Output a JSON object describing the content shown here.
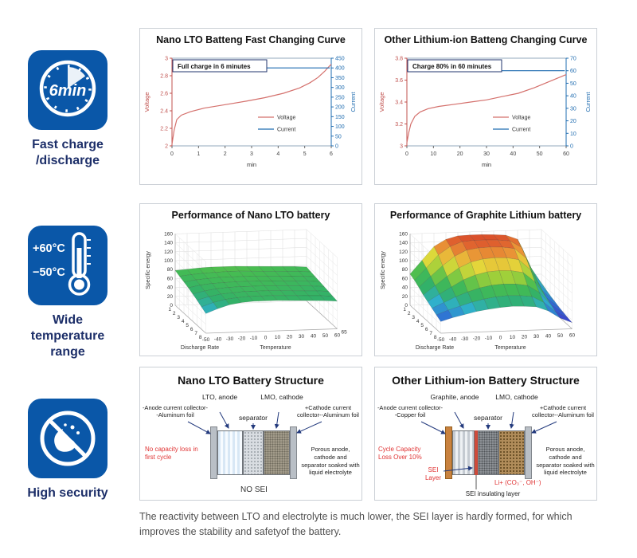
{
  "sidebar": {
    "items": [
      {
        "icon": "clock-6min-icon",
        "clock_text": "6min",
        "label_lines": [
          "Fast charge",
          "/discharge"
        ]
      },
      {
        "icon": "thermometer-icon",
        "temp_high": "+60°C",
        "temp_low": "−50°C",
        "label_lines": [
          "Wide",
          "temperature",
          "range"
        ]
      },
      {
        "icon": "no-explosion-icon",
        "label_lines": [
          "High security"
        ]
      }
    ]
  },
  "chart_data": {
    "line_charts": [
      {
        "type": "line",
        "title": "Nano LTO Batteng Fast Changing Curve",
        "annotation": "Full charge in 6 minutes",
        "x_axis": {
          "label": "min",
          "min": 0,
          "max": 6,
          "ticks": [
            0,
            1,
            2,
            3,
            4,
            5,
            6
          ]
        },
        "left_axis": {
          "label": "Voltage",
          "color": "#c0504d",
          "min": 2,
          "max": 3,
          "ticks": [
            2,
            2.2,
            2.4,
            2.6,
            2.8,
            3
          ]
        },
        "right_axis": {
          "label": "Current",
          "color": "#1f6cb0",
          "min": 0,
          "max": 450,
          "ticks": [
            0,
            50,
            100,
            150,
            200,
            250,
            300,
            350,
            400,
            450
          ]
        },
        "series": [
          {
            "name": "Voltage",
            "axis": "left",
            "color": "#d4706c",
            "points": [
              [
                0,
                2.02
              ],
              [
                0.08,
                2.18
              ],
              [
                0.18,
                2.3
              ],
              [
                0.35,
                2.35
              ],
              [
                0.7,
                2.39
              ],
              [
                1.2,
                2.43
              ],
              [
                2,
                2.47
              ],
              [
                2.8,
                2.51
              ],
              [
                3.5,
                2.55
              ],
              [
                4.2,
                2.6
              ],
              [
                4.8,
                2.66
              ],
              [
                5.2,
                2.72
              ],
              [
                5.5,
                2.78
              ],
              [
                5.75,
                2.85
              ],
              [
                5.9,
                2.9
              ],
              [
                6,
                2.93
              ]
            ]
          },
          {
            "name": "Current",
            "axis": "right",
            "color": "#1f6cb0",
            "points": [
              [
                0,
                400
              ],
              [
                5.95,
                400
              ]
            ]
          }
        ]
      },
      {
        "type": "line",
        "title": "Other Lithium-ion Batteng Changing Curve",
        "annotation": "Charge 80% in 60 minutes",
        "x_axis": {
          "label": "min",
          "min": 0,
          "max": 60,
          "ticks": [
            0,
            10,
            20,
            30,
            40,
            50,
            60
          ]
        },
        "left_axis": {
          "label": "Voltage",
          "color": "#c0504d",
          "min": 3,
          "max": 3.8,
          "ticks": [
            3,
            3.2,
            3.4,
            3.6,
            3.8
          ]
        },
        "right_axis": {
          "label": "Current",
          "color": "#1f6cb0",
          "min": 0,
          "max": 70,
          "ticks": [
            0,
            10,
            20,
            30,
            40,
            50,
            60,
            70
          ]
        },
        "series": [
          {
            "name": "Voltage",
            "axis": "left",
            "color": "#d4706c",
            "points": [
              [
                0,
                3.03
              ],
              [
                0.7,
                3.12
              ],
              [
                1.5,
                3.2
              ],
              [
                3,
                3.27
              ],
              [
                5,
                3.31
              ],
              [
                8,
                3.34
              ],
              [
                12,
                3.36
              ],
              [
                18,
                3.38
              ],
              [
                24,
                3.4
              ],
              [
                30,
                3.42
              ],
              [
                36,
                3.45
              ],
              [
                42,
                3.48
              ],
              [
                48,
                3.53
              ],
              [
                53,
                3.58
              ],
              [
                57,
                3.62
              ],
              [
                60,
                3.65
              ]
            ]
          },
          {
            "name": "Current",
            "axis": "right",
            "color": "#1f6cb0",
            "points": [
              [
                0,
                60
              ],
              [
                59.5,
                60
              ]
            ]
          }
        ]
      }
    ],
    "colormap": [
      [
        0,
        "#6a2ca0"
      ],
      [
        0.1,
        "#4038c8"
      ],
      [
        0.2,
        "#2f6fd4"
      ],
      [
        0.3,
        "#2fb0cc"
      ],
      [
        0.4,
        "#31b06a"
      ],
      [
        0.5,
        "#46bc52"
      ],
      [
        0.6,
        "#9ccf3a"
      ],
      [
        0.7,
        "#e3d93a"
      ],
      [
        0.8,
        "#eca438"
      ],
      [
        0.9,
        "#e0652f"
      ],
      [
        1,
        "#d43a28"
      ]
    ],
    "surfaces": [
      {
        "type": "surface",
        "title": "Performance of Nano LTO battery",
        "z_label": "Specific energy",
        "z_max": 160,
        "z_ticks": [
          0,
          20,
          40,
          60,
          80,
          100,
          120,
          140,
          160
        ],
        "rate_axis": {
          "label": "Discharge Rate",
          "ticks": [
            1,
            2,
            3,
            4,
            5,
            6,
            7,
            8
          ]
        },
        "temp_axis": {
          "label": "Temperature",
          "ticks": [
            -50,
            -40,
            -30,
            -20,
            -10,
            0,
            10,
            20,
            30,
            40,
            50,
            60
          ],
          "end_label": "65"
        },
        "z_values": [
          [
            78,
            80,
            82,
            83,
            83,
            83,
            82,
            81,
            80,
            79,
            78,
            76
          ],
          [
            74,
            77,
            79,
            80,
            81,
            81,
            80,
            79,
            78,
            77,
            76,
            74
          ],
          [
            70,
            74,
            76,
            78,
            78,
            78,
            78,
            77,
            76,
            75,
            74,
            72
          ],
          [
            66,
            71,
            74,
            75,
            76,
            76,
            76,
            75,
            74,
            73,
            72,
            70
          ],
          [
            61,
            67,
            71,
            73,
            74,
            74,
            74,
            73,
            72,
            71,
            70,
            68
          ],
          [
            56,
            63,
            68,
            70,
            72,
            72,
            72,
            71,
            70,
            69,
            68,
            66
          ],
          [
            50,
            59,
            65,
            68,
            70,
            70,
            70,
            69,
            68,
            67,
            66,
            64
          ],
          [
            44,
            54,
            62,
            66,
            68,
            68,
            68,
            67,
            66,
            65,
            64,
            62
          ]
        ]
      },
      {
        "type": "surface",
        "title": "Performance of Graphite Lithium battery",
        "z_label": "Specific energy",
        "z_max": 160,
        "z_ticks": [
          0,
          20,
          40,
          60,
          80,
          100,
          120,
          140,
          160
        ],
        "rate_axis": {
          "label": "Discharge Rate",
          "ticks": [
            1,
            2,
            3,
            4,
            5,
            6,
            7,
            8
          ]
        },
        "temp_axis": {
          "label": "Temperature",
          "ticks": [
            -50,
            -40,
            -30,
            -20,
            -10,
            0,
            10,
            20,
            30,
            40,
            50,
            60
          ],
          "end_label": ""
        },
        "z_values": [
          [
            70,
            100,
            130,
            145,
            152,
            153,
            153,
            152,
            150,
            140,
            80,
            40
          ],
          [
            65,
            92,
            120,
            138,
            148,
            150,
            150,
            149,
            146,
            130,
            70,
            35
          ],
          [
            58,
            82,
            105,
            125,
            138,
            142,
            143,
            142,
            138,
            115,
            60,
            30
          ],
          [
            50,
            70,
            90,
            108,
            120,
            126,
            128,
            127,
            122,
            98,
            50,
            26
          ],
          [
            44,
            60,
            75,
            90,
            100,
            106,
            108,
            107,
            102,
            80,
            42,
            22
          ],
          [
            38,
            50,
            62,
            72,
            80,
            85,
            87,
            86,
            82,
            65,
            36,
            19
          ],
          [
            32,
            42,
            50,
            58,
            64,
            68,
            70,
            69,
            66,
            52,
            30,
            16
          ],
          [
            26,
            34,
            40,
            46,
            50,
            53,
            55,
            54,
            52,
            42,
            25,
            14
          ]
        ]
      }
    ]
  },
  "structures": [
    {
      "title": "Nano LTO Battery Structure",
      "anode_label": "LTO, anode",
      "cathode_label": "LMO, cathode",
      "separator_label": "separator",
      "left_collector": "-Anode current collector--Aluminum foil",
      "right_collector": "+Cathode current collector--Aluminum foil",
      "red_note": "No capacity loss in first cycle",
      "bottom_label": "NO SEI",
      "electrolyte_note": "Porous anode, cathode and separator soaked with liquid electrolyte"
    },
    {
      "title": "Other Lithium-ion Battery Structure",
      "anode_label": "Graphite, anode",
      "cathode_label": "LMO, cathode",
      "separator_label": "separator",
      "left_collector": "-Anode current collector--Copper foil",
      "right_collector": "+Cathode current collector--Aluminum foil",
      "red_note": "Cycle Capacity Loss Over 10%",
      "sei_layer_label": "SEI Layer",
      "sei_insulating_label": "SEI insulating layer",
      "li_label": "Li+ (CO₃⁻, OH⁻)",
      "electrolyte_note": "Porous anode, cathode and separator soaked with liquid electrolyte"
    }
  ],
  "caption": {
    "line1": "The reactivity between LTO and electrolyte is much lower, the SEI layer is hardly formed, for which",
    "line2": "improves the stability and safetyof the battery."
  },
  "colors": {
    "tile_blue": "#0a57a8",
    "label_navy": "#1d2f69",
    "voltage_red": "#c0504d",
    "current_blue": "#1f6cb0",
    "note_red": "#e03434",
    "arrow_navy": "#233a7d"
  }
}
